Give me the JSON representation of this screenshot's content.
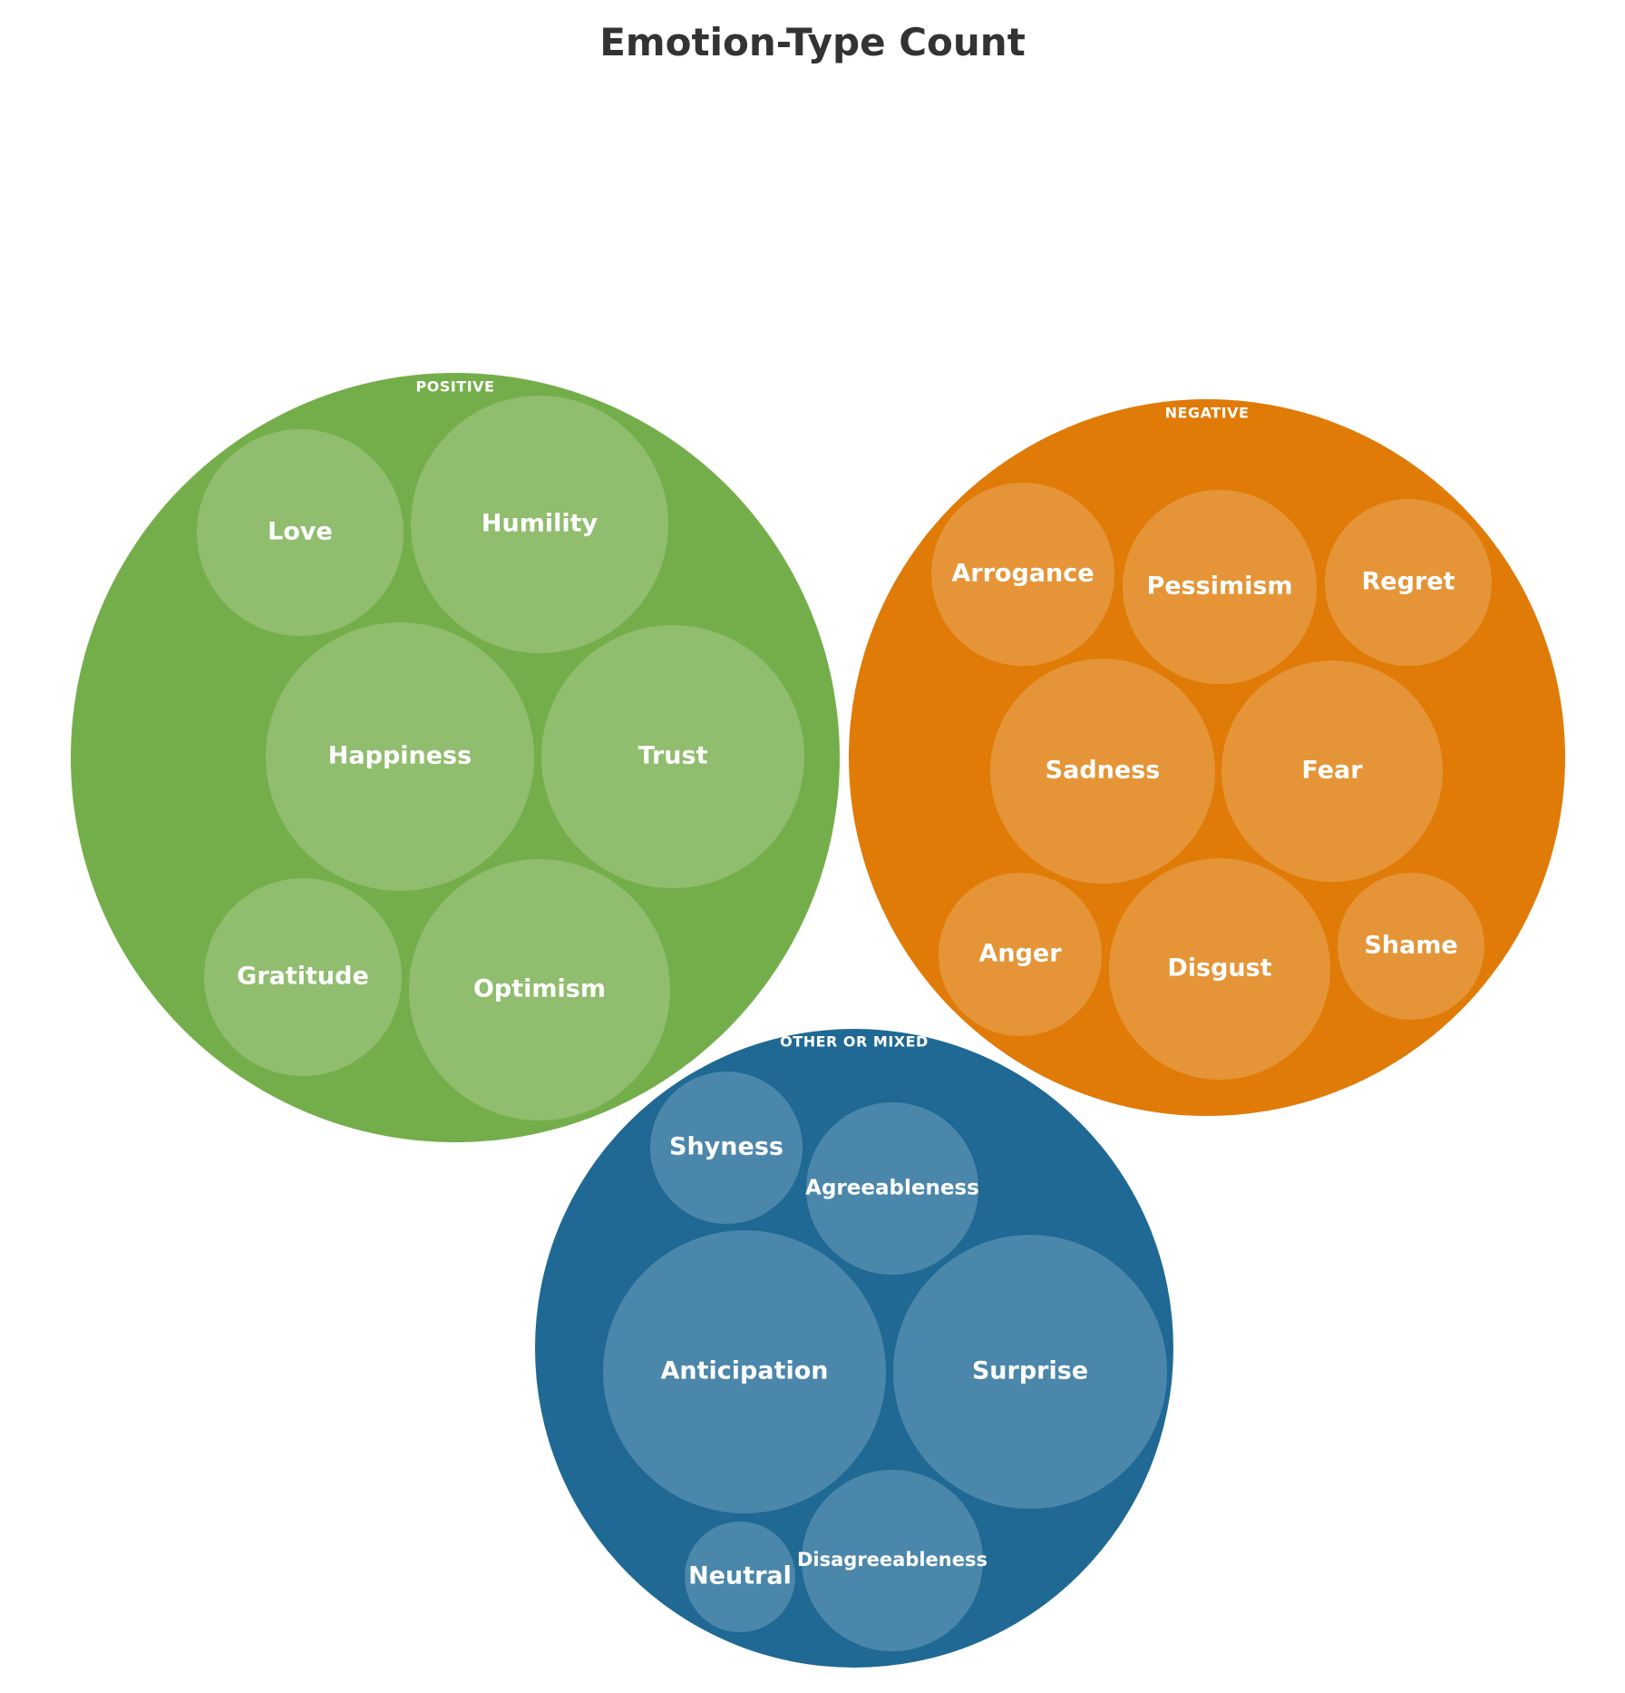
{
  "title": "Emotion-Type Count",
  "chart_data": {
    "type": "packed-bubble",
    "title": "Emotion-Type Count",
    "groups": [
      {
        "name": "POSITIVE",
        "color": "#74ae4a",
        "leaf_color": "#90bd6e",
        "items": [
          {
            "label": "Love"
          },
          {
            "label": "Humility"
          },
          {
            "label": "Happiness"
          },
          {
            "label": "Trust"
          },
          {
            "label": "Gratitude"
          },
          {
            "label": "Optimism"
          }
        ]
      },
      {
        "name": "NEGATIVE",
        "color": "#e07b08",
        "leaf_color": "#e59537",
        "items": [
          {
            "label": "Arrogance"
          },
          {
            "label": "Pessimism"
          },
          {
            "label": "Regret"
          },
          {
            "label": "Sadness"
          },
          {
            "label": "Fear"
          },
          {
            "label": "Anger"
          },
          {
            "label": "Disgust"
          },
          {
            "label": "Shame"
          }
        ]
      },
      {
        "name": "OTHER OR MIXED",
        "color": "#1f6994",
        "leaf_color": "#4b87aa",
        "items": [
          {
            "label": "Shyness"
          },
          {
            "label": "Agreeableness"
          },
          {
            "label": "Anticipation"
          },
          {
            "label": "Surprise"
          },
          {
            "label": "Neutral"
          },
          {
            "label": "Disagreeableness"
          }
        ]
      }
    ]
  }
}
